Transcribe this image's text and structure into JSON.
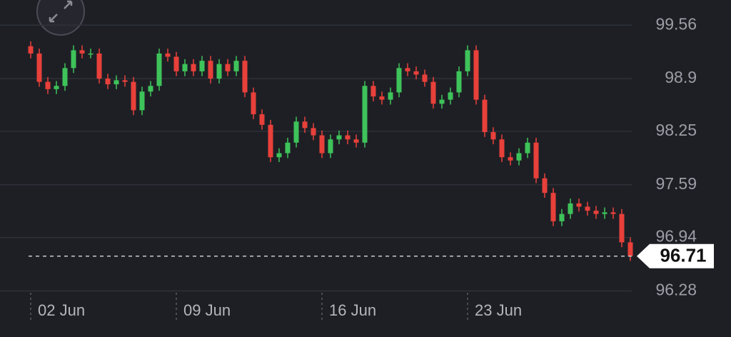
{
  "chart_data": {
    "type": "candlestick",
    "categories": [
      "02 Jun",
      null,
      null,
      null,
      null,
      null,
      null,
      null,
      null,
      null,
      null,
      null,
      null,
      null,
      null,
      null,
      null,
      "09 Jun",
      null,
      null,
      null,
      null,
      null,
      null,
      null,
      null,
      null,
      null,
      null,
      null,
      null,
      null,
      null,
      null,
      "16 Jun",
      null,
      null,
      null,
      null,
      null,
      null,
      null,
      null,
      null,
      null,
      null,
      null,
      null,
      null,
      null,
      null,
      "23 Jun",
      null,
      null,
      null,
      null,
      null,
      null,
      null,
      null,
      null,
      null,
      null,
      null,
      null,
      null,
      null,
      null,
      null,
      null,
      null
    ],
    "open": [
      99.3,
      99.21,
      98.86,
      98.77,
      98.81,
      99.03,
      99.25,
      99.21,
      99.21,
      98.9,
      98.83,
      98.88,
      98.86,
      98.51,
      98.74,
      98.81,
      99.21,
      99.17,
      98.99,
      99.08,
      98.99,
      99.12,
      98.9,
      99.08,
      98.99,
      99.12,
      98.73,
      98.46,
      98.33,
      97.93,
      97.98,
      98.11,
      98.37,
      98.29,
      98.2,
      97.98,
      98.15,
      98.2,
      98.15,
      98.11,
      98.81,
      98.68,
      98.64,
      98.73,
      99.03,
      98.99,
      98.95,
      98.86,
      98.59,
      98.64,
      98.73,
      98.99,
      99.25,
      98.64,
      98.24,
      98.15,
      97.93,
      97.89,
      97.98,
      98.11,
      97.67,
      97.49,
      97.14,
      97.23,
      97.36,
      97.32,
      97.27,
      97.23,
      97.25,
      97.23,
      96.88
    ],
    "high": [
      99.36,
      99.27,
      98.92,
      98.87,
      99.09,
      99.31,
      99.31,
      99.27,
      99.27,
      98.96,
      98.94,
      98.94,
      98.92,
      98.8,
      98.87,
      99.27,
      99.27,
      99.23,
      99.14,
      99.14,
      99.18,
      99.18,
      99.14,
      99.14,
      99.18,
      99.18,
      98.79,
      98.52,
      98.39,
      98.04,
      98.17,
      98.43,
      98.43,
      98.35,
      98.26,
      98.21,
      98.26,
      98.26,
      98.21,
      98.87,
      98.87,
      98.74,
      98.79,
      99.09,
      99.09,
      99.05,
      99.01,
      98.92,
      98.7,
      98.79,
      99.05,
      99.31,
      99.31,
      98.7,
      98.3,
      98.21,
      97.99,
      98.04,
      98.17,
      98.17,
      97.73,
      97.55,
      97.29,
      97.42,
      97.42,
      97.38,
      97.33,
      97.31,
      97.31,
      97.29,
      96.94
    ],
    "low": [
      99.15,
      98.8,
      98.71,
      98.71,
      98.75,
      98.97,
      99.15,
      99.15,
      98.84,
      98.77,
      98.77,
      98.8,
      98.45,
      98.45,
      98.68,
      98.75,
      99.11,
      98.93,
      98.93,
      98.93,
      98.93,
      98.84,
      98.84,
      98.93,
      98.93,
      98.67,
      98.4,
      98.27,
      97.87,
      97.87,
      97.92,
      98.05,
      98.23,
      98.14,
      97.92,
      97.92,
      98.09,
      98.09,
      98.05,
      98.05,
      98.62,
      98.58,
      98.58,
      98.67,
      98.93,
      98.89,
      98.8,
      98.53,
      98.53,
      98.58,
      98.67,
      98.93,
      98.58,
      98.18,
      98.09,
      97.87,
      97.83,
      97.83,
      97.92,
      97.61,
      97.43,
      97.08,
      97.08,
      97.17,
      97.26,
      97.21,
      97.17,
      97.17,
      97.17,
      96.82,
      96.65
    ],
    "close": [
      99.21,
      98.86,
      98.77,
      98.81,
      99.03,
      99.25,
      99.21,
      99.21,
      98.9,
      98.83,
      98.88,
      98.86,
      98.51,
      98.74,
      98.81,
      99.21,
      99.17,
      98.99,
      99.08,
      98.99,
      99.12,
      98.9,
      99.08,
      98.99,
      99.12,
      98.73,
      98.46,
      98.33,
      97.93,
      97.98,
      98.11,
      98.37,
      98.29,
      98.2,
      97.98,
      98.15,
      98.2,
      98.15,
      98.11,
      98.81,
      98.68,
      98.64,
      98.73,
      99.03,
      98.99,
      98.95,
      98.86,
      98.59,
      98.64,
      98.73,
      98.99,
      99.25,
      98.64,
      98.24,
      98.15,
      97.93,
      97.89,
      97.98,
      98.11,
      97.67,
      97.49,
      97.14,
      97.23,
      97.36,
      97.32,
      97.27,
      97.23,
      97.25,
      97.23,
      96.88,
      96.71
    ],
    "up_color": "#3ec35a",
    "down_color": "#e8403a",
    "last_price": 96.71,
    "ylim": [
      96.17,
      99.87
    ],
    "yticks": [
      96.28,
      96.94,
      97.59,
      98.25,
      98.9,
      99.56
    ],
    "grid": true
  }
}
